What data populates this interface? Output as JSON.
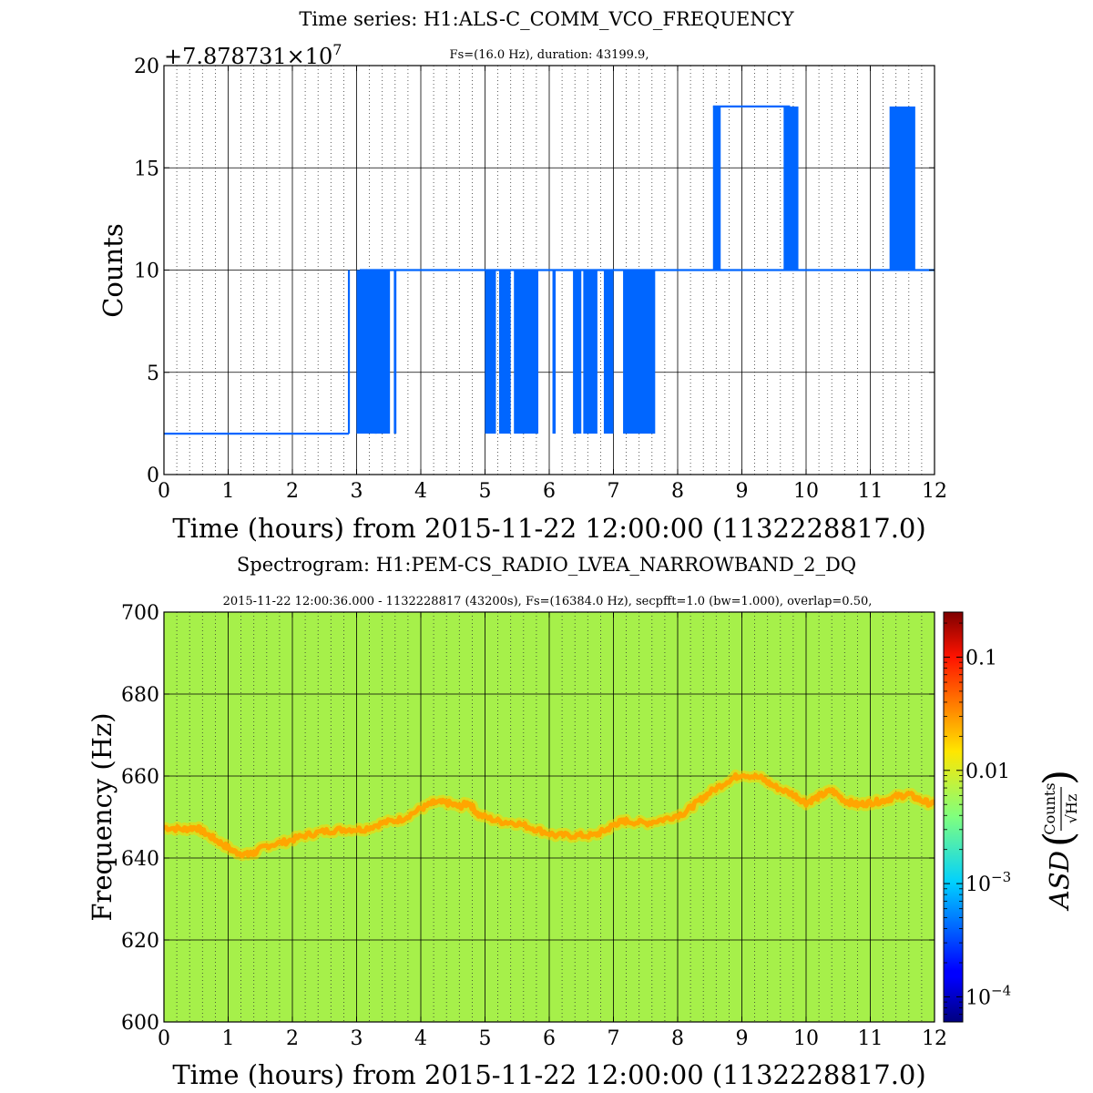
{
  "chart_data": [
    {
      "type": "line",
      "title": "Time series:  H1:ALS-C_COMM_VCO_FREQUENCY",
      "subtitle": "Fs=(16.0 Hz), duration: 43199.9,",
      "offset_label": "+7.878731×10",
      "offset_exponent": "7",
      "xlabel": "Time (hours) from 2015-11-22 12:00:00 (1132228817.0)",
      "ylabel": "Counts",
      "xlim": [
        0,
        12
      ],
      "ylim": [
        0,
        20
      ],
      "xticks": [
        "0",
        "1",
        "2",
        "3",
        "4",
        "5",
        "6",
        "7",
        "8",
        "9",
        "10",
        "11",
        "12"
      ],
      "yticks": [
        "0",
        "5",
        "10",
        "15",
        "20"
      ],
      "grid": true,
      "series_color": "#0066ff",
      "baseline_segments": [
        {
          "x": [
            0.0,
            2.88
          ],
          "y": 2
        },
        {
          "x": [
            3.05,
            12.0
          ],
          "y": 10
        },
        {
          "x": [
            8.55,
            9.75
          ],
          "y": 18
        }
      ],
      "fluctuation_bands": [
        {
          "x": [
            3.0,
            3.52
          ],
          "y": [
            2,
            10
          ]
        },
        {
          "x": [
            3.58,
            3.62
          ],
          "y": [
            2,
            10
          ]
        },
        {
          "x": [
            5.0,
            5.17
          ],
          "y": [
            2,
            10
          ]
        },
        {
          "x": [
            5.22,
            5.4
          ],
          "y": [
            2,
            10
          ]
        },
        {
          "x": [
            5.45,
            5.83
          ],
          "y": [
            2,
            10
          ]
        },
        {
          "x": [
            6.05,
            6.1
          ],
          "y": [
            2,
            10
          ]
        },
        {
          "x": [
            6.37,
            6.5
          ],
          "y": [
            2,
            10
          ]
        },
        {
          "x": [
            6.53,
            6.75
          ],
          "y": [
            2,
            10
          ]
        },
        {
          "x": [
            6.85,
            7.0
          ],
          "y": [
            2,
            10
          ]
        },
        {
          "x": [
            7.15,
            7.65
          ],
          "y": [
            2,
            10
          ]
        },
        {
          "x": [
            8.55,
            8.67
          ],
          "y": [
            10,
            18
          ]
        },
        {
          "x": [
            9.65,
            9.88
          ],
          "y": [
            10,
            18
          ]
        },
        {
          "x": [
            11.3,
            11.7
          ],
          "y": [
            10,
            18
          ]
        }
      ],
      "spikes": [
        {
          "x": 2.88,
          "y": [
            2,
            10
          ]
        },
        {
          "x": 3.3,
          "y": [
            2,
            10
          ]
        }
      ]
    },
    {
      "type": "heatmap",
      "title": "Spectrogram:  H1:PEM-CS_RADIO_LVEA_NARROWBAND_2_DQ",
      "subtitle": "2015-11-22  12:00:36.000 - 1132228817 (43200s), Fs=(16384.0 Hz), secpfft=1.0 (bw=1.000), overlap=0.50,",
      "xlabel": "Time (hours) from 2015-11-22 12:00:00 (1132228817.0)",
      "ylabel": "Frequency (Hz)",
      "xlim": [
        0,
        12
      ],
      "ylim": [
        600,
        700
      ],
      "xticks": [
        "0",
        "1",
        "2",
        "3",
        "4",
        "5",
        "6",
        "7",
        "8",
        "9",
        "10",
        "11",
        "12"
      ],
      "yticks": [
        "600",
        "620",
        "640",
        "660",
        "680",
        "700"
      ],
      "grid": true,
      "background_color": "#a6f04a",
      "trace_color": "#ffa500",
      "colorbar": {
        "label": "ASD",
        "unit_numerator": "Counts",
        "unit_denominator": "√Hz",
        "scale": "log",
        "range": [
          6e-05,
          0.25
        ],
        "ticks": [
          {
            "value": 0.1,
            "label": "0.1"
          },
          {
            "value": 0.01,
            "label": "0.01"
          },
          {
            "value": 0.001,
            "label": "10",
            "exp": "−3"
          },
          {
            "value": 0.0001,
            "label": "10",
            "exp": "−4"
          }
        ],
        "colormap": "jet"
      },
      "trace": {
        "x": [
          0.0,
          0.3,
          0.5,
          0.7,
          0.9,
          1.1,
          1.3,
          1.4,
          1.6,
          1.9,
          2.2,
          2.5,
          2.8,
          3.1,
          3.4,
          3.7,
          4.0,
          4.2,
          4.4,
          4.6,
          4.75,
          4.9,
          5.2,
          5.5,
          5.8,
          6.1,
          6.4,
          6.7,
          6.9,
          7.05,
          7.2,
          7.5,
          7.8,
          8.1,
          8.3,
          8.5,
          8.8,
          9.0,
          9.3,
          9.5,
          9.8,
          10.0,
          10.2,
          10.4,
          10.6,
          10.8,
          11.0,
          11.2,
          11.4,
          11.6,
          11.8,
          12.0
        ],
        "y": [
          647.5,
          647.0,
          647.5,
          645.5,
          643.5,
          641.5,
          640.8,
          641.2,
          643.0,
          644.0,
          645.5,
          646.5,
          647.0,
          647.0,
          648.5,
          649.5,
          652.0,
          653.5,
          653.5,
          652.5,
          653.5,
          650.5,
          649.0,
          648.5,
          647.0,
          645.5,
          645.5,
          645.5,
          647.0,
          648.5,
          649.0,
          648.5,
          649.5,
          651.0,
          653.5,
          656.0,
          659.0,
          660.5,
          659.5,
          657.5,
          655.5,
          653.5,
          655.0,
          656.5,
          654.0,
          653.0,
          653.5,
          654.0,
          655.0,
          655.5,
          654.0,
          653.0
        ]
      }
    }
  ]
}
